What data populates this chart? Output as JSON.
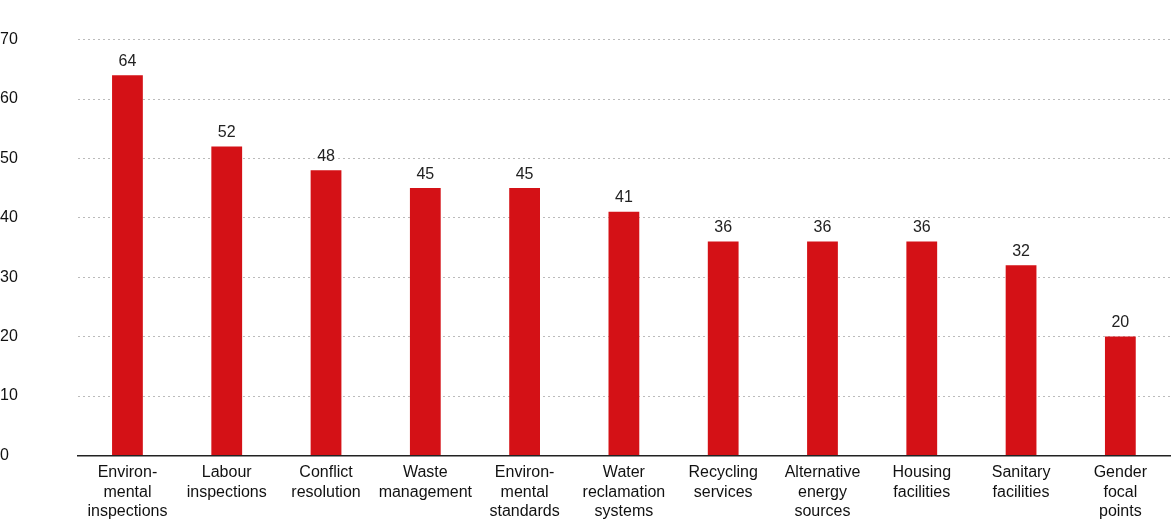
{
  "chart_data": {
    "type": "bar",
    "categories": [
      "Environ-\nmental\ninspections",
      "Labour\ninspections",
      "Conflict\nresolution",
      "Waste\nmanagement",
      "Environ-\nmental\nstandards",
      "Water\nreclamation\nsystems",
      "Recycling\nservices",
      "Alternative\nenergy\nsources",
      "Housing\nfacilities",
      "Sanitary\nfacilities",
      "Gender\nfocal\npoints"
    ],
    "values": [
      64,
      52,
      48,
      45,
      45,
      41,
      36,
      36,
      36,
      32,
      20
    ],
    "color": "#d41116",
    "ylim": [
      0,
      70
    ],
    "yticks": [
      0,
      10,
      20,
      30,
      40,
      50,
      60,
      70
    ],
    "grid": "y",
    "legend": false,
    "data_labels": true
  }
}
